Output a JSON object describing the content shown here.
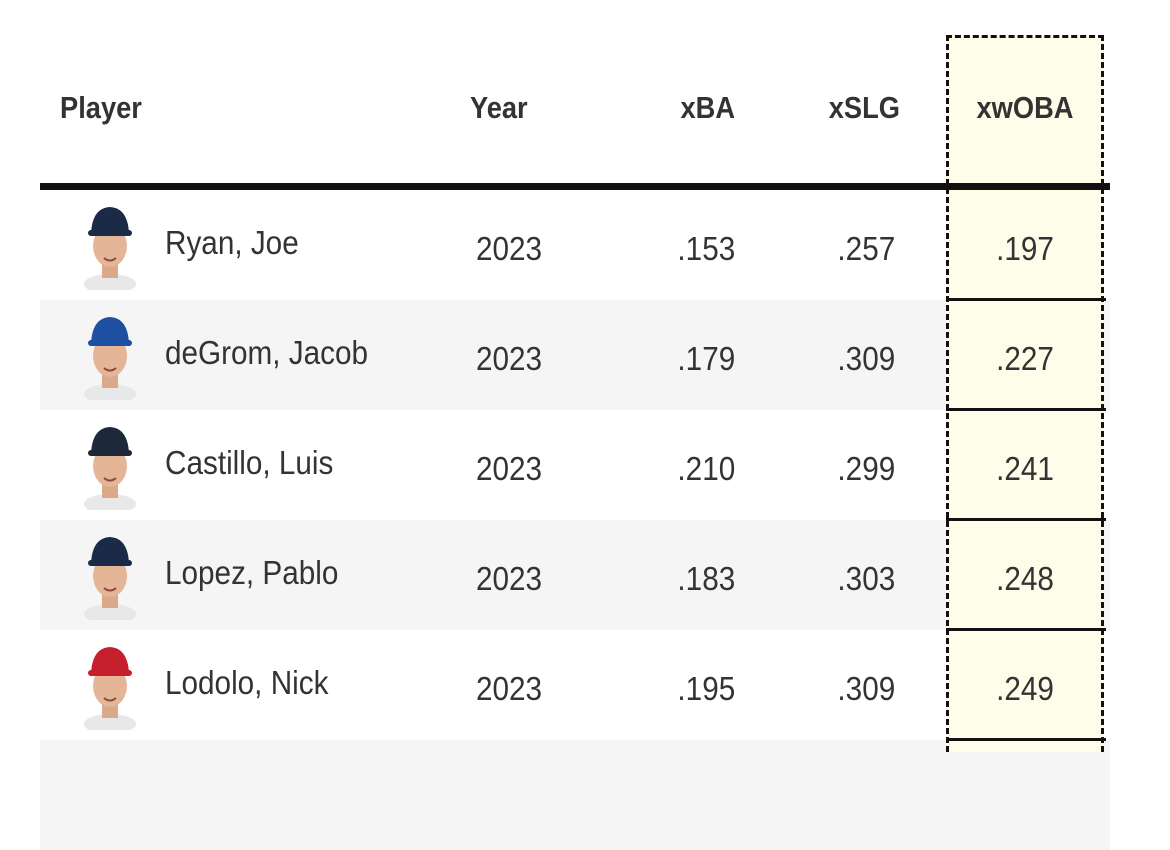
{
  "table": {
    "columns": [
      "Player",
      "Year",
      "xBA",
      "xSLG",
      "xwOBA"
    ],
    "rows": [
      [
        "Ryan, Joe",
        "2023",
        ".153",
        ".257",
        ".197"
      ],
      [
        "deGrom, Jacob",
        "2023",
        ".179",
        ".309",
        ".227"
      ],
      [
        "Castillo, Luis",
        "2023",
        ".210",
        ".299",
        ".241"
      ],
      [
        "Lopez, Pablo",
        "2023",
        ".183",
        ".303",
        ".248"
      ],
      [
        "Lodolo, Nick",
        "2023",
        ".195",
        ".309",
        ".249"
      ]
    ]
  }
}
